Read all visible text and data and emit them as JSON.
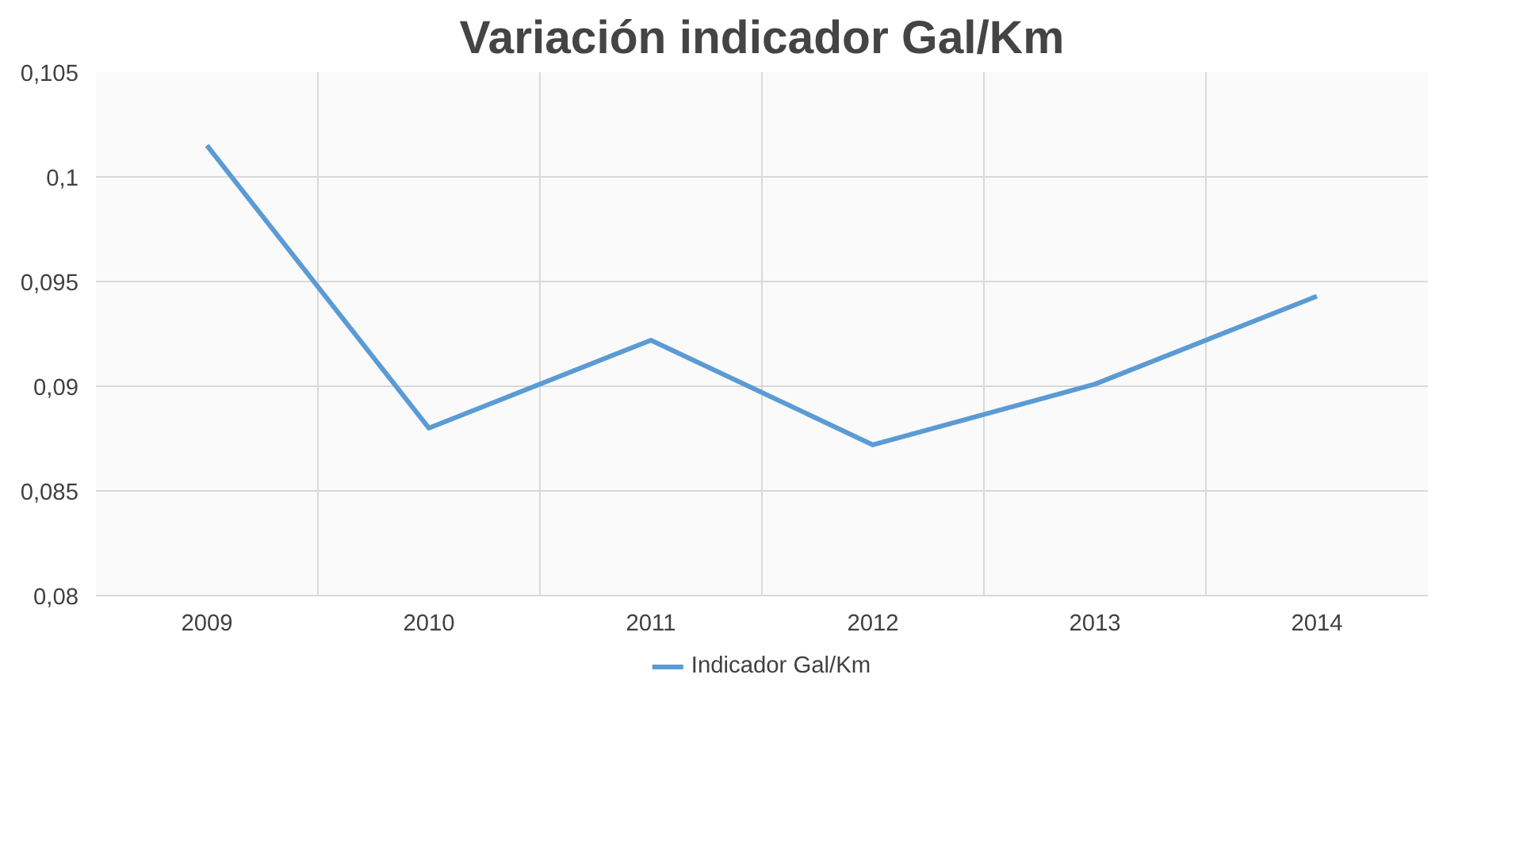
{
  "chart_data": {
    "type": "line",
    "title": "Variación indicador Gal/Km",
    "categories": [
      "2009",
      "2010",
      "2011",
      "2012",
      "2013",
      "2014"
    ],
    "series": [
      {
        "name": "Indicador Gal/Km",
        "color": "#5b9bd5",
        "values": [
          0.1015,
          0.088,
          0.0922,
          0.0872,
          0.0901,
          0.0943
        ]
      }
    ],
    "ylim": [
      0.08,
      0.105
    ],
    "yticks": [
      {
        "value": 0.08,
        "label": "0,08"
      },
      {
        "value": 0.085,
        "label": "0,085"
      },
      {
        "value": 0.09,
        "label": "0,09"
      },
      {
        "value": 0.095,
        "label": "0,095"
      },
      {
        "value": 0.1,
        "label": "0,1"
      },
      {
        "value": 0.105,
        "label": "0,105"
      }
    ],
    "grid": true,
    "legend": "bottom",
    "marker": "none",
    "line_style": "solid"
  }
}
